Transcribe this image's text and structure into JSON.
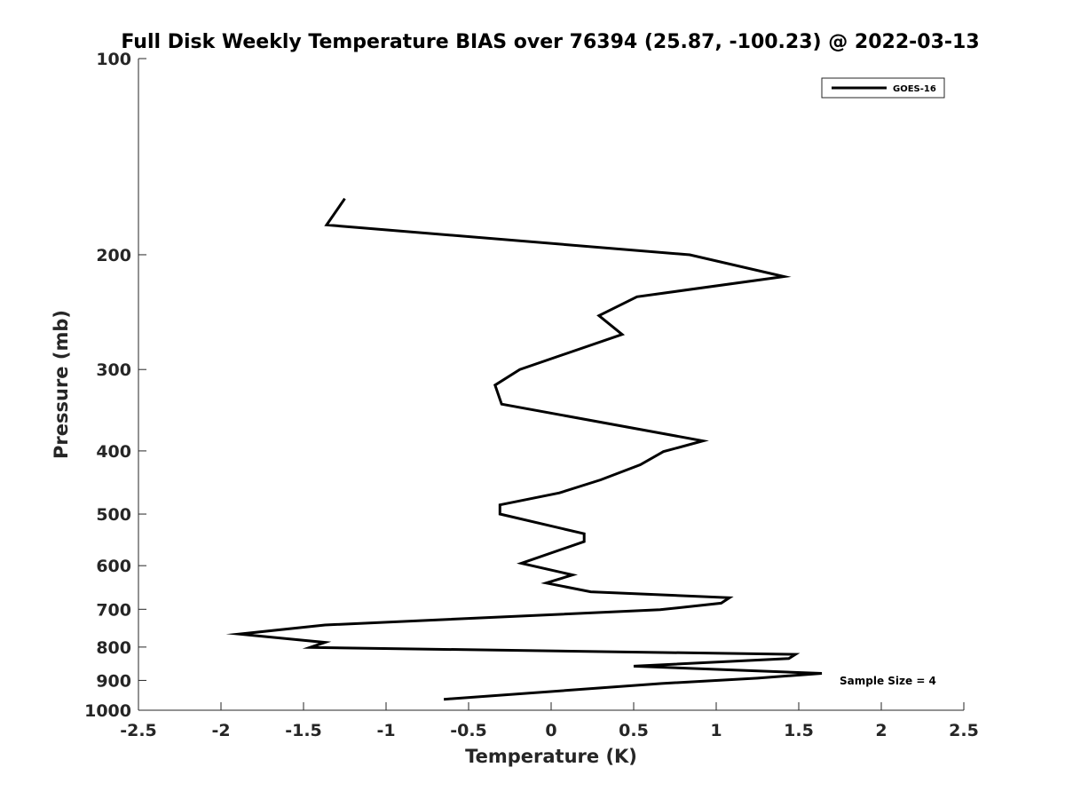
{
  "chart_data": {
    "type": "line",
    "title": "Full Disk Weekly Temperature BIAS over 76394 (25.87, -100.23) @ 2022-03-13",
    "xlabel": "Temperature (K)",
    "ylabel": "Pressure (mb)",
    "xlim": [
      -2.5,
      2.5
    ],
    "ylim": [
      100,
      1000
    ],
    "y_scale": "log",
    "y_reversed": true,
    "grid": false,
    "legend": "top-right",
    "x_ticks": [
      "-2.5",
      "-2",
      "-1.5",
      "-1",
      "-0.5",
      "0",
      "0.5",
      "1",
      "1.5",
      "2",
      "2.5"
    ],
    "y_ticks": [
      "100",
      "200",
      "300",
      "400",
      "500",
      "600",
      "700",
      "800",
      "900",
      "1000"
    ],
    "annotation": "Sample Size = 4",
    "series": [
      {
        "name": "GOES-16",
        "color": "#000000",
        "points": [
          {
            "x": -1.25,
            "y": 164
          },
          {
            "x": -1.36,
            "y": 180
          },
          {
            "x": 0.84,
            "y": 200
          },
          {
            "x": 1.41,
            "y": 216
          },
          {
            "x": 0.52,
            "y": 232
          },
          {
            "x": 0.29,
            "y": 248
          },
          {
            "x": 0.43,
            "y": 265
          },
          {
            "x": -0.19,
            "y": 300
          },
          {
            "x": -0.34,
            "y": 317
          },
          {
            "x": -0.3,
            "y": 339
          },
          {
            "x": 0.92,
            "y": 386
          },
          {
            "x": 0.68,
            "y": 401
          },
          {
            "x": 0.54,
            "y": 420
          },
          {
            "x": 0.3,
            "y": 443
          },
          {
            "x": 0.05,
            "y": 464
          },
          {
            "x": -0.31,
            "y": 484
          },
          {
            "x": -0.31,
            "y": 500
          },
          {
            "x": 0.2,
            "y": 536
          },
          {
            "x": 0.2,
            "y": 551
          },
          {
            "x": -0.18,
            "y": 595
          },
          {
            "x": 0.13,
            "y": 620
          },
          {
            "x": -0.03,
            "y": 638
          },
          {
            "x": 0.24,
            "y": 658
          },
          {
            "x": 1.08,
            "y": 672
          },
          {
            "x": 1.03,
            "y": 685
          },
          {
            "x": 0.66,
            "y": 701
          },
          {
            "x": -1.37,
            "y": 740
          },
          {
            "x": -1.89,
            "y": 764
          },
          {
            "x": -1.37,
            "y": 787
          },
          {
            "x": -1.46,
            "y": 801
          },
          {
            "x": 1.48,
            "y": 821
          },
          {
            "x": 1.44,
            "y": 833
          },
          {
            "x": 0.5,
            "y": 856
          },
          {
            "x": 1.64,
            "y": 878
          },
          {
            "x": 1.25,
            "y": 893
          },
          {
            "x": 0.67,
            "y": 910
          },
          {
            "x": -0.65,
            "y": 962
          }
        ]
      }
    ]
  }
}
